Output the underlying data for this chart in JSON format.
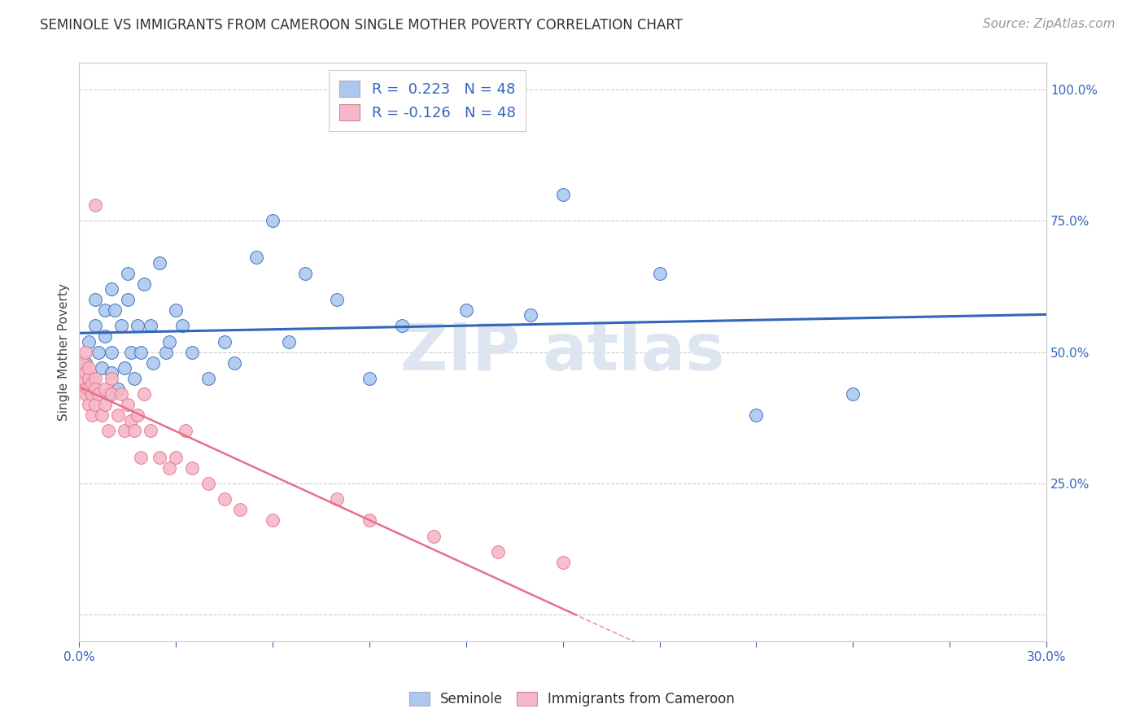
{
  "title": "SEMINOLE VS IMMIGRANTS FROM CAMEROON SINGLE MOTHER POVERTY CORRELATION CHART",
  "source": "Source: ZipAtlas.com",
  "ylabel": "Single Mother Poverty",
  "xlim": [
    0.0,
    0.3
  ],
  "ylim": [
    -0.05,
    1.05
  ],
  "ytick_vals_right": [
    0.0,
    0.25,
    0.5,
    0.75,
    1.0
  ],
  "ytick_labels_right": [
    "",
    "25.0%",
    "50.0%",
    "75.0%",
    "100.0%"
  ],
  "r_seminole": 0.223,
  "n_seminole": 48,
  "r_cameroon": -0.126,
  "n_cameroon": 48,
  "seminole_color": "#adc8ed",
  "cameroon_color": "#f5b8c8",
  "trend_seminole_color": "#3366bb",
  "trend_cameroon_color": "#e87088",
  "watermark_color": "#dde5f0",
  "legend_label_seminole": "Seminole",
  "legend_label_cameroon": "Immigrants from Cameroon",
  "seminole_points_x": [
    0.002,
    0.003,
    0.004,
    0.005,
    0.005,
    0.006,
    0.007,
    0.008,
    0.008,
    0.009,
    0.01,
    0.01,
    0.01,
    0.011,
    0.012,
    0.013,
    0.014,
    0.015,
    0.015,
    0.016,
    0.017,
    0.018,
    0.019,
    0.02,
    0.022,
    0.023,
    0.025,
    0.027,
    0.028,
    0.03,
    0.032,
    0.035,
    0.04,
    0.045,
    0.048,
    0.055,
    0.06,
    0.065,
    0.07,
    0.08,
    0.09,
    0.1,
    0.12,
    0.14,
    0.15,
    0.18,
    0.21,
    0.24
  ],
  "seminole_points_y": [
    0.48,
    0.52,
    0.45,
    0.55,
    0.6,
    0.5,
    0.47,
    0.53,
    0.58,
    0.42,
    0.5,
    0.46,
    0.62,
    0.58,
    0.43,
    0.55,
    0.47,
    0.6,
    0.65,
    0.5,
    0.45,
    0.55,
    0.5,
    0.63,
    0.55,
    0.48,
    0.67,
    0.5,
    0.52,
    0.58,
    0.55,
    0.5,
    0.45,
    0.52,
    0.48,
    0.68,
    0.75,
    0.52,
    0.65,
    0.6,
    0.45,
    0.55,
    0.58,
    0.57,
    0.8,
    0.65,
    0.38,
    0.42
  ],
  "cameroon_points_x": [
    0.001,
    0.001,
    0.002,
    0.002,
    0.002,
    0.002,
    0.003,
    0.003,
    0.003,
    0.003,
    0.004,
    0.004,
    0.004,
    0.005,
    0.005,
    0.005,
    0.005,
    0.006,
    0.007,
    0.008,
    0.008,
    0.009,
    0.01,
    0.01,
    0.012,
    0.013,
    0.014,
    0.015,
    0.016,
    0.017,
    0.018,
    0.019,
    0.02,
    0.022,
    0.025,
    0.028,
    0.03,
    0.033,
    0.035,
    0.04,
    0.045,
    0.05,
    0.06,
    0.08,
    0.09,
    0.11,
    0.13,
    0.15
  ],
  "cameroon_points_y": [
    0.45,
    0.48,
    0.43,
    0.46,
    0.5,
    0.42,
    0.45,
    0.47,
    0.43,
    0.4,
    0.42,
    0.38,
    0.44,
    0.45,
    0.4,
    0.43,
    0.78,
    0.42,
    0.38,
    0.4,
    0.43,
    0.35,
    0.42,
    0.45,
    0.38,
    0.42,
    0.35,
    0.4,
    0.37,
    0.35,
    0.38,
    0.3,
    0.42,
    0.35,
    0.3,
    0.28,
    0.3,
    0.35,
    0.28,
    0.25,
    0.22,
    0.2,
    0.18,
    0.22,
    0.18,
    0.15,
    0.12,
    0.1
  ],
  "background_color": "#ffffff",
  "grid_color": "#cccccc",
  "title_fontsize": 12,
  "axis_label_fontsize": 11,
  "tick_fontsize": 11,
  "legend_fontsize": 12,
  "source_fontsize": 11
}
